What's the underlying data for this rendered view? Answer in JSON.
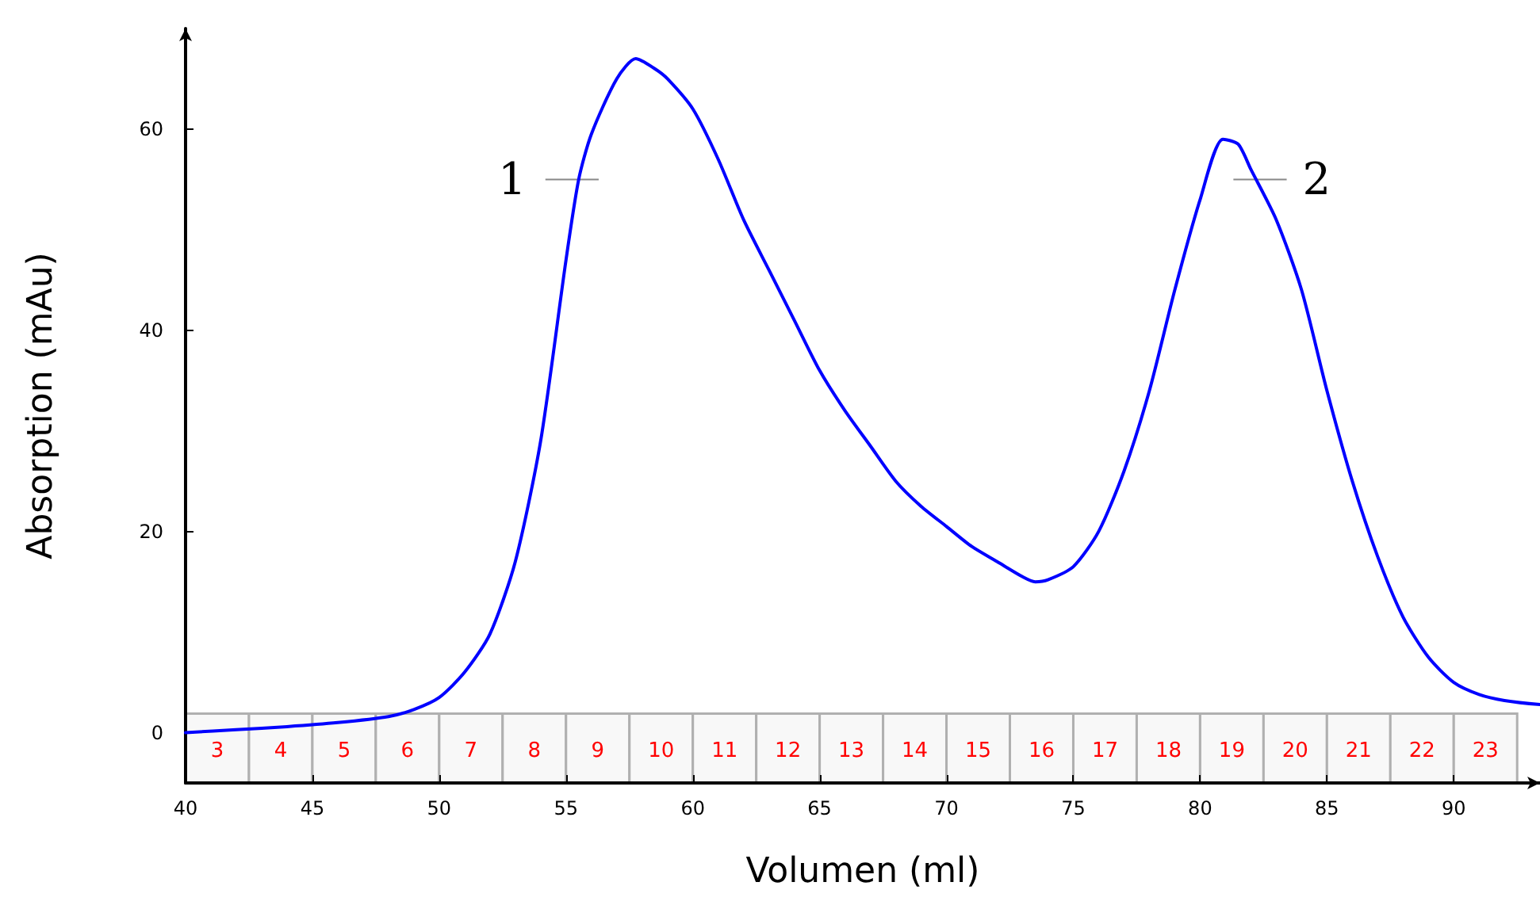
{
  "chart_data": {
    "type": "line",
    "xlabel": "Volumen (ml)",
    "ylabel": "Absorption (mAu)",
    "xlim": [
      40,
      93.4
    ],
    "xticks": [
      40,
      45,
      50,
      55,
      60,
      65,
      70,
      75,
      80,
      85,
      90
    ],
    "ylim": [
      -5,
      70
    ],
    "yticks": [
      0,
      20,
      40,
      60
    ],
    "grid": false,
    "marker": "none",
    "line_style": "solid",
    "series": [
      {
        "color": "#0000ff",
        "x": [
          40,
          42,
          44,
          46,
          48,
          49,
          50,
          51,
          52,
          53,
          54,
          55,
          55.5,
          56,
          57,
          57.75,
          58.5,
          59,
          60,
          61,
          62,
          63,
          64,
          65,
          66,
          67,
          68,
          69,
          70,
          71,
          72,
          73,
          73.5,
          74,
          75,
          76,
          77,
          78,
          79,
          80,
          80.9,
          81.5,
          82,
          83,
          84,
          85,
          86,
          87,
          88,
          89,
          90,
          91,
          92,
          93.4
        ],
        "values": [
          0,
          0.3,
          0.6,
          1.0,
          1.6,
          2.3,
          3.5,
          6,
          9.8,
          17,
          29,
          47,
          55,
          59.5,
          65,
          67,
          66,
          65,
          62,
          57,
          51,
          46,
          41,
          36,
          32,
          28.5,
          25,
          22.5,
          20.5,
          18.5,
          17,
          15.5,
          15,
          15.2,
          16.5,
          20,
          26,
          34,
          44,
          53,
          59,
          58.5,
          56,
          51,
          44,
          34,
          25,
          17.5,
          11.5,
          7.5,
          5,
          3.8,
          3.2,
          2.8
        ]
      }
    ],
    "annotations": [
      {
        "text": "1",
        "x": 55.5,
        "y": 55
      },
      {
        "text": "2",
        "x": 82.1,
        "y": 55
      }
    ],
    "bands": [
      {
        "axis": "x",
        "from": 40,
        "to": 42.5,
        "label": "3"
      },
      {
        "axis": "x",
        "from": 42.5,
        "to": 45,
        "label": "4"
      },
      {
        "axis": "x",
        "from": 45,
        "to": 47.5,
        "label": "5"
      },
      {
        "axis": "x",
        "from": 47.5,
        "to": 50,
        "label": "6"
      },
      {
        "axis": "x",
        "from": 50,
        "to": 52.5,
        "label": "7"
      },
      {
        "axis": "x",
        "from": 52.5,
        "to": 55,
        "label": "8"
      },
      {
        "axis": "x",
        "from": 55,
        "to": 57.5,
        "label": "9"
      },
      {
        "axis": "x",
        "from": 57.5,
        "to": 60,
        "label": "10"
      },
      {
        "axis": "x",
        "from": 60,
        "to": 62.5,
        "label": "11"
      },
      {
        "axis": "x",
        "from": 62.5,
        "to": 65,
        "label": "12"
      },
      {
        "axis": "x",
        "from": 65,
        "to": 67.5,
        "label": "13"
      },
      {
        "axis": "x",
        "from": 67.5,
        "to": 70,
        "label": "14"
      },
      {
        "axis": "x",
        "from": 70,
        "to": 72.5,
        "label": "15"
      },
      {
        "axis": "x",
        "from": 72.5,
        "to": 75,
        "label": "16"
      },
      {
        "axis": "x",
        "from": 75,
        "to": 77.5,
        "label": "17"
      },
      {
        "axis": "x",
        "from": 77.5,
        "to": 80,
        "label": "18"
      },
      {
        "axis": "x",
        "from": 80,
        "to": 82.5,
        "label": "19"
      },
      {
        "axis": "x",
        "from": 82.5,
        "to": 85,
        "label": "20"
      },
      {
        "axis": "x",
        "from": 85,
        "to": 87.5,
        "label": "21"
      },
      {
        "axis": "x",
        "from": 87.5,
        "to": 90,
        "label": "22"
      },
      {
        "axis": "x",
        "from": 90,
        "to": 92.5,
        "label": "23"
      }
    ]
  }
}
